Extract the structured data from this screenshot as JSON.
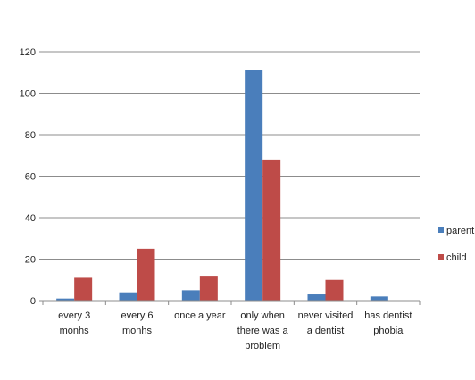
{
  "chart_data": {
    "type": "bar",
    "categories": [
      [
        "every 3",
        "monhs"
      ],
      [
        "every 6",
        "monhs"
      ],
      [
        "once a year"
      ],
      [
        "only when",
        "there was a",
        "problem"
      ],
      [
        "never visited",
        "a dentist"
      ],
      [
        "has dentist",
        "phobia"
      ]
    ],
    "series": [
      {
        "name": "parent",
        "color": "#4a7ebb",
        "values": [
          1,
          4,
          5,
          111,
          3,
          2
        ]
      },
      {
        "name": "child",
        "color": "#be4b48",
        "values": [
          11,
          25,
          12,
          68,
          10,
          0
        ]
      }
    ],
    "y_ticks": [
      "0",
      "20",
      "40",
      "60",
      "80",
      "100",
      "120"
    ],
    "ylim": [
      0,
      120
    ],
    "title": "",
    "xlabel": "",
    "ylabel": "",
    "grid": true,
    "legend_position": "right"
  }
}
